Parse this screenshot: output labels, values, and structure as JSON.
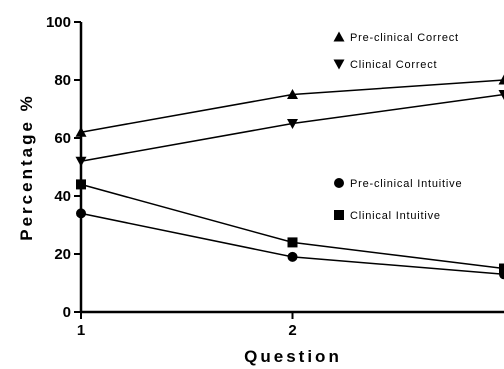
{
  "chart_data": {
    "type": "line",
    "xlabel": "Question",
    "ylabel": "Percentage %",
    "ylim": [
      0,
      100
    ],
    "y_ticks": [
      "0",
      "20",
      "40",
      "60",
      "80",
      "100"
    ],
    "x_ticks": [
      "1",
      "2"
    ],
    "x_range": [
      1,
      3
    ],
    "grid": false,
    "legend_position": "inside, right",
    "series": [
      {
        "name": "Pre-clinical Correct",
        "marker": "triangle-up",
        "x": [
          1,
          2,
          3
        ],
        "values": [
          62,
          75,
          80
        ]
      },
      {
        "name": "Clinical Correct",
        "marker": "triangle-down",
        "x": [
          1,
          2,
          3
        ],
        "values": [
          52,
          65,
          75
        ]
      },
      {
        "name": "Pre-clinical Intuitive",
        "marker": "circle",
        "x": [
          1,
          2,
          3
        ],
        "values": [
          34,
          19,
          13
        ]
      },
      {
        "name": "Clinical Intuitive",
        "marker": "square",
        "x": [
          1,
          2,
          3
        ],
        "values": [
          44,
          24,
          15
        ]
      }
    ]
  }
}
